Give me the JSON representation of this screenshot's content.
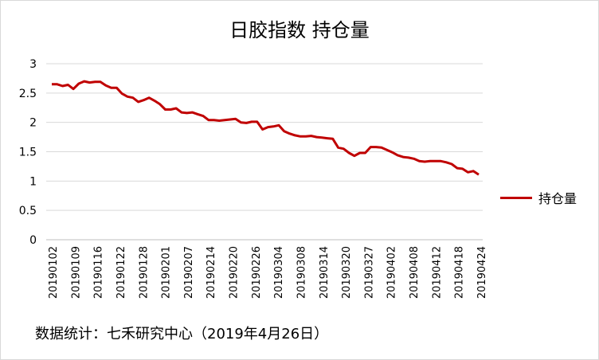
{
  "chart_data": {
    "type": "line",
    "title": "日胶指数 持仓量",
    "source_note": "数据统计：七禾研究中心（2019年4月26日）",
    "x_tick_labels": [
      "20190102",
      "20190109",
      "20190116",
      "20190122",
      "20190128",
      "20190201",
      "20190207",
      "20190214",
      "20190220",
      "20190226",
      "20190304",
      "20190308",
      "20190314",
      "20190320",
      "20190327",
      "20190402",
      "20190408",
      "20190412",
      "20190418",
      "20190424"
    ],
    "ylim": [
      0,
      3
    ],
    "yticks": [
      0,
      0.5,
      1,
      1.5,
      2,
      2.5,
      3
    ],
    "grid": "horizontal",
    "legend_position": "right",
    "series": [
      {
        "name": "持仓量",
        "color": "#c00000",
        "values": [
          2.65,
          2.65,
          2.62,
          2.64,
          2.57,
          2.66,
          2.7,
          2.68,
          2.69,
          2.69,
          2.63,
          2.59,
          2.59,
          2.49,
          2.44,
          2.42,
          2.35,
          2.38,
          2.42,
          2.37,
          2.31,
          2.22,
          2.22,
          2.24,
          2.17,
          2.16,
          2.17,
          2.14,
          2.11,
          2.04,
          2.04,
          2.03,
          2.04,
          2.05,
          2.06,
          2.0,
          1.99,
          2.01,
          2.01,
          1.88,
          1.92,
          1.93,
          1.95,
          1.85,
          1.81,
          1.78,
          1.76,
          1.76,
          1.77,
          1.75,
          1.74,
          1.73,
          1.72,
          1.57,
          1.55,
          1.48,
          1.43,
          1.48,
          1.48,
          1.58,
          1.58,
          1.57,
          1.53,
          1.49,
          1.44,
          1.41,
          1.4,
          1.38,
          1.34,
          1.33,
          1.34,
          1.34,
          1.34,
          1.32,
          1.29,
          1.22,
          1.21,
          1.15,
          1.17,
          1.11
        ]
      }
    ]
  }
}
